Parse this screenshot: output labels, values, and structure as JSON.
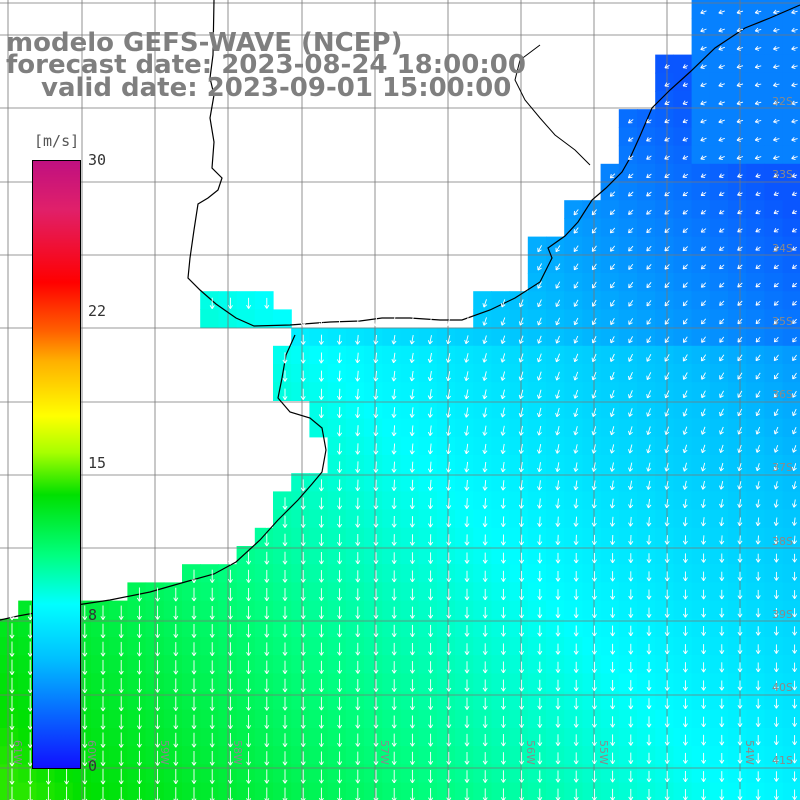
{
  "title": {
    "line1": "modelo GEFS-WAVE (NCEP)",
    "line2": "forecast date: 2023-08-24 18:00:00",
    "line3": "valid date: 2023-09-01 15:00:00"
  },
  "colorbar": {
    "unit": "[m/s]",
    "ticks": [
      "30",
      "22",
      "15",
      "8",
      "0"
    ],
    "tick_values": [
      30,
      22,
      15,
      8,
      0
    ],
    "range": [
      0,
      30
    ],
    "colors": {
      "low": "#1010ff",
      "mid_low": "#00ffff",
      "mid": "#00e000",
      "mid_high": "#ffff00",
      "high": "#ff0000",
      "top": "#c01080"
    }
  },
  "map": {
    "background": "#ffffff",
    "grid_color": "#777777",
    "coast_color": "#000000",
    "arrow_color": "#ffffff",
    "lon_labels": [
      "61W",
      "60W",
      "59W",
      "58W",
      "57W",
      "56W",
      "55W",
      "54W"
    ],
    "lat_labels": [
      "32S",
      "33S",
      "34S",
      "35S",
      "36S",
      "37S",
      "38S",
      "39S",
      "40S",
      "41S"
    ]
  }
}
